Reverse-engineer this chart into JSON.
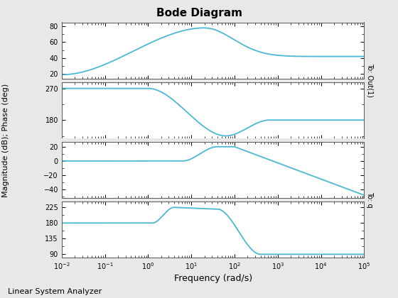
{
  "title": "Bode Diagram",
  "xlabel": "Frequency (rad/s)",
  "ylabel_left": "Magnitude (dB); Phase (deg)",
  "line_color": "#4db8d4",
  "bg_color": "#e8e8e8",
  "plot_bg_color": "#ffffff",
  "footer_text": "Linear System Analyzer",
  "mag1_yticks": [
    20,
    40,
    60,
    80
  ],
  "mag1_ylim": [
    14,
    85
  ],
  "phase1_yticks": [
    180,
    270
  ],
  "phase1_ylim": [
    128,
    288
  ],
  "mag2_yticks": [
    -40,
    -20,
    0,
    20
  ],
  "mag2_ylim": [
    -52,
    27
  ],
  "phase2_yticks": [
    90,
    135,
    180,
    225
  ],
  "phase2_ylim": [
    80,
    242
  ]
}
